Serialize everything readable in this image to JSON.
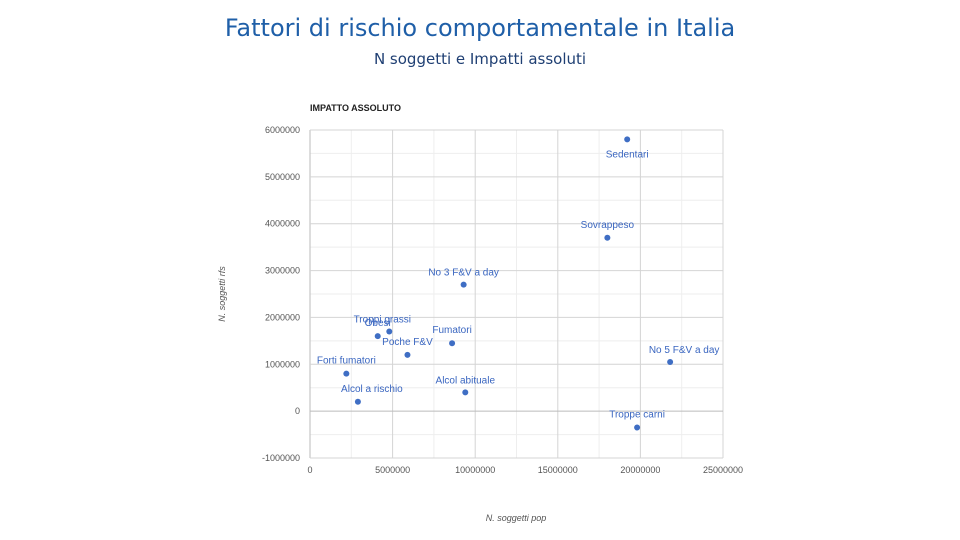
{
  "slide": {
    "title": "Fattori di rischio comportamentale in Italia",
    "subtitle": "N soggetti e Impatti assoluti"
  },
  "chart_data": {
    "type": "scatter",
    "title": "IMPATTO ASSOLUTO",
    "xlabel": "N. soggetti pop",
    "ylabel": "N. soggetti rfs",
    "xlim": [
      0,
      25000000
    ],
    "ylim": [
      -1000000,
      6000000
    ],
    "x_ticks": [
      0,
      5000000,
      10000000,
      15000000,
      20000000,
      25000000
    ],
    "y_ticks": [
      -1000000,
      0,
      1000000,
      2000000,
      3000000,
      4000000,
      5000000,
      6000000
    ],
    "x_tick_labels": [
      "0",
      "5000000",
      "10000000",
      "15000000",
      "20000000",
      "25000000"
    ],
    "y_tick_labels": [
      "-1000000",
      "0",
      "1000000",
      "2000000",
      "3000000",
      "4000000",
      "5000000",
      "6000000"
    ],
    "grid": true,
    "point_color": "#3f6ec4",
    "points": [
      {
        "label": "Sedentari",
        "x": 19200000,
        "y": 5800000
      },
      {
        "label": "Sovrappeso",
        "x": 18000000,
        "y": 3700000
      },
      {
        "label": "No 3 F&V a day",
        "x": 9300000,
        "y": 2700000
      },
      {
        "label": "Troppi grassi",
        "x": 4800000,
        "y": 1700000
      },
      {
        "label": "Obesi",
        "x": 4100000,
        "y": 1600000
      },
      {
        "label": "Fumatori",
        "x": 8600000,
        "y": 1450000
      },
      {
        "label": "Poche F&V",
        "x": 5900000,
        "y": 1200000
      },
      {
        "label": "No 5 F&V a day",
        "x": 21800000,
        "y": 1050000
      },
      {
        "label": "Forti fumatori",
        "x": 2200000,
        "y": 800000
      },
      {
        "label": "Alcol abituale",
        "x": 9400000,
        "y": 400000
      },
      {
        "label": "Alcol a rischio",
        "x": 2900000,
        "y": 200000
      },
      {
        "label": "Troppe carni",
        "x": 19800000,
        "y": -350000
      }
    ]
  }
}
